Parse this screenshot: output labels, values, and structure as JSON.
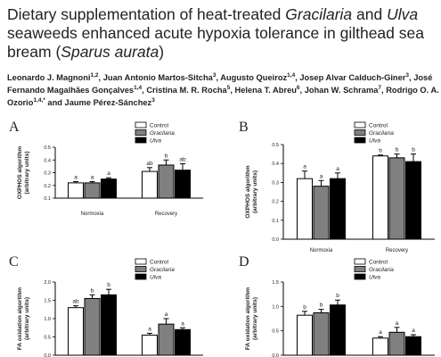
{
  "header": {
    "title": [
      "Dietary supplementation of heat-treated ",
      "Gracilaria",
      " and ",
      "Ulva",
      " seaweeds enhanced acute hypoxia tolerance in gilthead sea bream (",
      "Sparus aurata",
      ")"
    ],
    "authors": [
      {
        "name": "Leonardo J. Magnoni",
        "sup": "1,2",
        "sep": ", "
      },
      {
        "name": "Juan Antonio Martos-Sitcha",
        "sup": "3",
        "sep": ", "
      },
      {
        "name": "Augusto Queiroz",
        "sup": "1,4",
        "sep": ", "
      },
      {
        "name": "Josep Alvar Calduch-Giner",
        "sup": "3",
        "sep": ", "
      },
      {
        "name": "José Fernando Magalhães Gonçalves",
        "sup": "1,4",
        "sep": ", "
      },
      {
        "name": "Cristina M. R. Rocha",
        "sup": "5",
        "sep": ", "
      },
      {
        "name": "Helena T. Abreu",
        "sup": "6",
        "sep": ", "
      },
      {
        "name": "Johan W. Schrama",
        "sup": "7",
        "sep": ", "
      },
      {
        "name": "Rodrigo O. A. Ozorio",
        "sup": "1,4,*",
        "sep": " and "
      },
      {
        "name": "Jaume Pérez-Sánchez",
        "sup": "3",
        "sep": ""
      }
    ]
  },
  "chart_data": [
    {
      "type": "bar",
      "panel": "A",
      "ylabel": [
        "OXPHOS algorithm",
        "(arbitrary units)"
      ],
      "categories": [
        "Normoxia",
        "Recovery"
      ],
      "series": [
        {
          "name": "Control",
          "color": "#ffffff",
          "values": [
            0.22,
            0.31
          ],
          "errors": [
            0.01,
            0.03
          ],
          "letters": [
            "a",
            "ab"
          ]
        },
        {
          "name": "Gracilaria",
          "color": "#808080",
          "values": [
            0.22,
            0.36
          ],
          "errors": [
            0.01,
            0.04
          ],
          "letters": [
            "a",
            "b"
          ]
        },
        {
          "name": "Ulva",
          "color": "#000000",
          "values": [
            0.25,
            0.32
          ],
          "errors": [
            0.01,
            0.05
          ],
          "letters": [
            "a",
            "ab"
          ]
        }
      ],
      "ylim": [
        0.1,
        0.5
      ],
      "yticks": [
        0.1,
        0.2,
        0.3,
        0.4,
        0.5
      ]
    },
    {
      "type": "bar",
      "panel": "B",
      "ylabel": [
        "OXPHOS algorithm",
        "(arbitrary units)"
      ],
      "categories": [
        "Normoxia",
        "Recovery"
      ],
      "series": [
        {
          "name": "Control",
          "color": "#ffffff",
          "values": [
            0.32,
            0.44
          ],
          "errors": [
            0.04,
            0.005
          ],
          "letters": [
            "a",
            "b"
          ]
        },
        {
          "name": "Gracilaria",
          "color": "#808080",
          "values": [
            0.28,
            0.43
          ],
          "errors": [
            0.03,
            0.02
          ],
          "letters": [
            "a",
            "b"
          ]
        },
        {
          "name": "Ulva",
          "color": "#000000",
          "values": [
            0.32,
            0.41
          ],
          "errors": [
            0.03,
            0.04
          ],
          "letters": [
            "a",
            "b"
          ]
        }
      ],
      "ylim": [
        0,
        0.5
      ],
      "yticks": [
        {
          "value": 0,
          "label": "0.0"
        },
        0.1,
        0.2,
        0.3,
        0.4,
        0.5
      ]
    },
    {
      "type": "bar",
      "panel": "C",
      "ylabel": [
        "FA oxidation algorithm",
        "(arbitrary units)"
      ],
      "categories": [
        null,
        null
      ],
      "series": [
        {
          "name": "Control",
          "color": "#ffffff",
          "values": [
            1.3,
            0.55
          ],
          "errors": [
            0.05,
            0.05
          ],
          "letters": [
            "ab",
            "a"
          ]
        },
        {
          "name": "Gracilaria",
          "color": "#808080",
          "values": [
            1.55,
            0.85
          ],
          "errors": [
            0.1,
            0.15
          ],
          "letters": [
            "b",
            "a"
          ]
        },
        {
          "name": "Ulva",
          "color": "#000000",
          "values": [
            1.65,
            0.7
          ],
          "errors": [
            0.15,
            0.05
          ],
          "letters": [
            "b",
            "a"
          ]
        }
      ],
      "ylim": [
        0,
        2
      ],
      "yticks": [
        {
          "value": 0,
          "label": "0.0"
        },
        0.5,
        {
          "value": 1,
          "label": "1.0"
        },
        1.5,
        {
          "value": 2,
          "label": "2.0"
        }
      ]
    },
    {
      "type": "bar",
      "panel": "D",
      "ylabel": [
        "FA oxidation algorithm",
        "(arbitrary units)"
      ],
      "categories": [
        null,
        null
      ],
      "series": [
        {
          "name": "Control",
          "color": "#ffffff",
          "values": [
            0.82,
            0.35
          ],
          "errors": [
            0.08,
            0.03
          ],
          "letters": [
            "b",
            "a"
          ]
        },
        {
          "name": "Gracilaria",
          "color": "#808080",
          "values": [
            0.87,
            0.47
          ],
          "errors": [
            0.07,
            0.1
          ],
          "letters": [
            "b",
            "a"
          ]
        },
        {
          "name": "Ulva",
          "color": "#000000",
          "values": [
            1.03,
            0.38
          ],
          "errors": [
            0.1,
            0.04
          ],
          "letters": [
            "b",
            "a"
          ]
        }
      ],
      "ylim": [
        0,
        1.5
      ],
      "yticks": [
        {
          "value": 0,
          "label": "0.0"
        },
        0.5,
        {
          "value": 1,
          "label": "1.0"
        },
        1.5
      ]
    }
  ]
}
